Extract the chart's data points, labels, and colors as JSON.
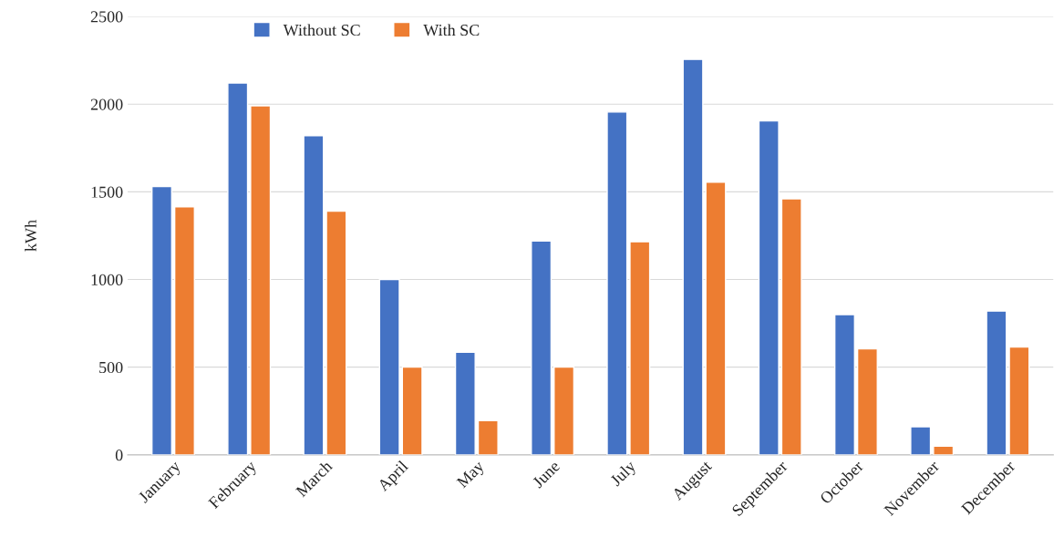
{
  "chart_data": {
    "type": "bar",
    "ylabel": "kWh",
    "categories": [
      "January",
      "February",
      "March",
      "April",
      "May",
      "June",
      "July",
      "August",
      "September",
      "October",
      "November",
      "December"
    ],
    "series": [
      {
        "name": "Without SC",
        "color": "#4472c4",
        "values": [
          1530,
          2120,
          1820,
          1000,
          585,
          1220,
          1955,
          2255,
          1905,
          800,
          160,
          820
        ]
      },
      {
        "name": "With SC",
        "color": "#ed7d31",
        "values": [
          1415,
          1990,
          1390,
          500,
          195,
          500,
          1215,
          1555,
          1460,
          605,
          50,
          615
        ]
      }
    ],
    "ylim": [
      0,
      2500
    ],
    "yticks": [
      0,
      500,
      1000,
      1500,
      2000,
      2500
    ],
    "grid": "y",
    "legend": "top left"
  }
}
